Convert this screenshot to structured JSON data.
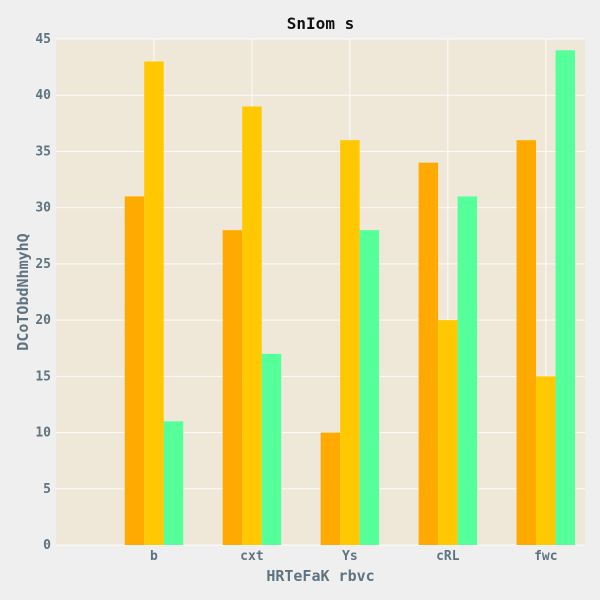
{
  "chart_data": {
    "type": "bar",
    "title": "SnIom s",
    "xlabel": "HRTeFaK  rbvc",
    "ylabel": "DCoTObdNhmyhQ",
    "categories": [
      "b",
      "cxt",
      "Ys",
      "cRL",
      "fwc"
    ],
    "series": [
      {
        "color": "#FFAA00",
        "values": [
          31,
          28,
          10,
          34,
          36
        ]
      },
      {
        "color": "#FFC800",
        "values": [
          43,
          39,
          36,
          20,
          15
        ]
      },
      {
        "color": "#55FF99",
        "values": [
          11,
          17,
          28,
          31,
          44
        ]
      }
    ],
    "ylim": [
      0,
      45
    ],
    "yticks": [
      0,
      5,
      10,
      15,
      20,
      25,
      30,
      35,
      40,
      45
    ],
    "grid": true,
    "plot_background": "#efe8d8"
  }
}
